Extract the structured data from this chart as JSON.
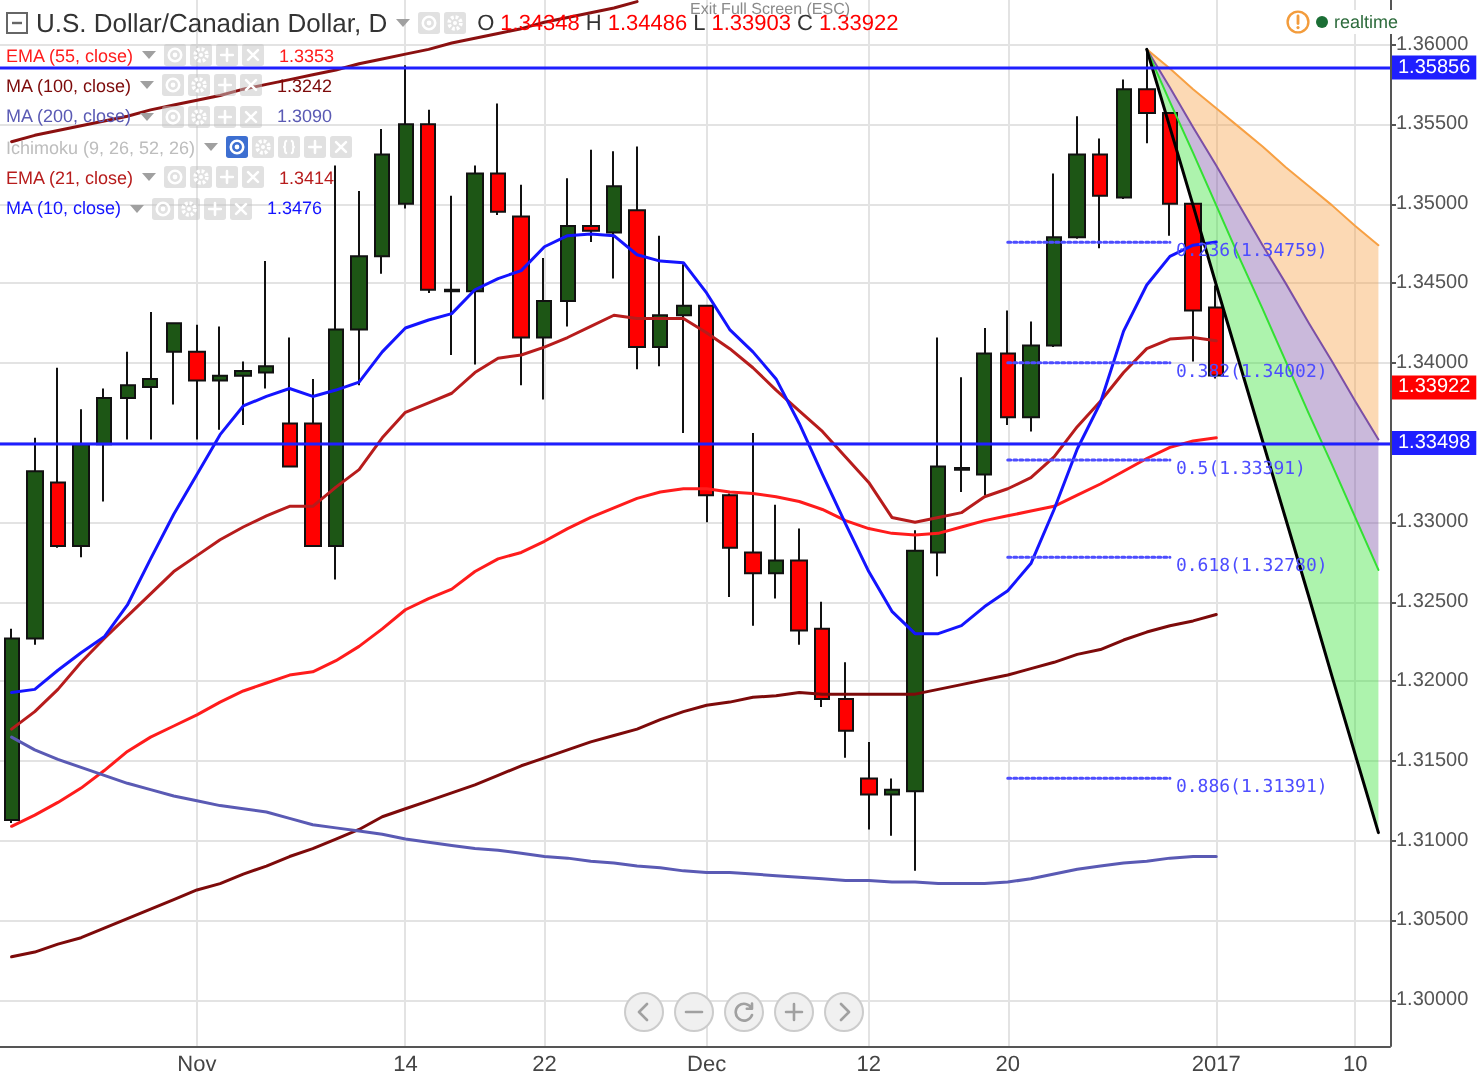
{
  "chart_data": {
    "type": "candlestick",
    "title": "U.S. Dollar/Canadian Dollar, D",
    "categories": [
      null,
      null,
      null,
      null,
      null,
      null,
      null,
      null,
      "Nov",
      null,
      null,
      null,
      null,
      null,
      null,
      null,
      null,
      "14",
      null,
      null,
      null,
      null,
      null,
      "22",
      null,
      null,
      null,
      null,
      null,
      null,
      "Dec",
      null,
      null,
      null,
      null,
      null,
      null,
      "12",
      null,
      null,
      null,
      null,
      null,
      "20",
      null,
      null,
      null,
      null,
      null,
      null,
      null,
      null,
      "2017",
      null,
      null,
      null,
      null,
      null,
      "10",
      null
    ],
    "ohlc": [
      [
        1.3113,
        1.3233,
        1.3111,
        1.3227
      ],
      [
        1.3227,
        1.3353,
        1.3223,
        1.3332
      ],
      [
        1.3325,
        1.3397,
        1.3284,
        1.3285
      ],
      [
        1.3285,
        1.3371,
        1.3278,
        1.3349
      ],
      [
        1.3349,
        1.3384,
        1.3313,
        1.3378
      ],
      [
        1.3378,
        1.3407,
        1.3352,
        1.3386
      ],
      [
        1.3385,
        1.3432,
        1.3352,
        1.339
      ],
      [
        1.3407,
        1.3425,
        1.3374,
        1.3425
      ],
      [
        1.3407,
        1.3424,
        1.3352,
        1.3389
      ],
      [
        1.3389,
        1.3423,
        1.3358,
        1.3392
      ],
      [
        1.3392,
        1.3401,
        1.3361,
        1.3395
      ],
      [
        1.3394,
        1.3464,
        1.3384,
        1.3398
      ],
      [
        1.3362,
        1.3416,
        1.3335,
        1.3335
      ],
      [
        1.3362,
        1.339,
        1.3285,
        1.3285
      ],
      [
        1.3285,
        1.3524,
        1.3264,
        1.3421
      ],
      [
        1.3421,
        1.3508,
        1.3386,
        1.3467
      ],
      [
        1.3467,
        1.3547,
        1.3456,
        1.3531
      ],
      [
        1.35,
        1.3587,
        1.3497,
        1.355
      ],
      [
        1.355,
        1.3559,
        1.3444,
        1.3446
      ],
      [
        1.3446,
        1.3505,
        1.3405,
        1.3445
      ],
      [
        1.3445,
        1.3524,
        1.3399,
        1.3519
      ],
      [
        1.3519,
        1.3563,
        1.3493,
        1.3495
      ],
      [
        1.3492,
        1.3512,
        1.3386,
        1.3416
      ],
      [
        1.3416,
        1.3466,
        1.3377,
        1.3439
      ],
      [
        1.3439,
        1.3516,
        1.3423,
        1.3486
      ],
      [
        1.3486,
        1.3534,
        1.3476,
        1.3483
      ],
      [
        1.3482,
        1.3533,
        1.3453,
        1.3511
      ],
      [
        1.3496,
        1.3536,
        1.3396,
        1.341
      ],
      [
        1.341,
        1.348,
        1.3398,
        1.343
      ],
      [
        1.343,
        1.3462,
        1.3356,
        1.3436
      ],
      [
        1.3436,
        1.3436,
        1.33,
        1.3317
      ],
      [
        1.3317,
        1.3318,
        1.3253,
        1.3284
      ],
      [
        1.3281,
        1.3356,
        1.3235,
        1.3268
      ],
      [
        1.3268,
        1.3311,
        1.3252,
        1.3276
      ],
      [
        1.3276,
        1.3296,
        1.3223,
        1.3232
      ],
      [
        1.3233,
        1.325,
        1.3184,
        1.3189
      ],
      [
        1.3189,
        1.3212,
        1.3152,
        1.3169
      ],
      [
        1.3139,
        1.3162,
        1.3107,
        1.3129
      ],
      [
        1.3129,
        1.3139,
        1.3103,
        1.3132
      ],
      [
        1.3131,
        1.3295,
        1.3081,
        1.3282
      ],
      [
        1.3281,
        1.3416,
        1.3266,
        1.3335
      ],
      [
        1.3334,
        1.3391,
        1.3319,
        1.3333
      ],
      [
        1.333,
        1.3422,
        1.3317,
        1.3406
      ],
      [
        1.3406,
        1.3433,
        1.3361,
        1.3366
      ],
      [
        1.3366,
        1.3426,
        1.3357,
        1.3411
      ],
      [
        1.3411,
        1.3519,
        1.341,
        1.3479
      ],
      [
        1.3479,
        1.3555,
        1.3478,
        1.3531
      ],
      [
        1.3531,
        1.3541,
        1.3472,
        1.3505
      ],
      [
        1.3504,
        1.3578,
        1.3503,
        1.3572
      ],
      [
        1.3572,
        1.3597,
        1.3538,
        1.3557
      ],
      [
        1.3557,
        1.3557,
        1.348,
        1.35
      ],
      [
        1.35,
        1.35,
        1.3401,
        1.3433
      ],
      [
        1.34348,
        1.34486,
        1.33903,
        1.33922
      ],
      null,
      null,
      null,
      null,
      null,
      null,
      null
    ],
    "colors": [
      "#1d5615",
      "#1d5615",
      "#ff0000",
      "#1d5615",
      "#1d5615",
      "#1d5615",
      "#1d5615",
      "#1d5615",
      "#ff0000",
      "#1d5615",
      "#1d5615",
      "#1d5615",
      "#ff0000",
      "#ff0000",
      "#1d5615",
      "#1d5615",
      "#1d5615",
      "#1d5615",
      "#ff0000",
      "#ff0000",
      "#1d5615",
      "#ff0000",
      "#ff0000",
      "#1d5615",
      "#1d5615",
      "#ff0000",
      "#1d5615",
      "#ff0000",
      "#1d5615",
      "#1d5615",
      "#ff0000",
      "#ff0000",
      "#ff0000",
      "#1d5615",
      "#ff0000",
      "#ff0000",
      "#ff0000",
      "#ff0000",
      "#1d5615",
      "#1d5615",
      "#1d5615",
      "#ff0000",
      "#1d5615",
      "#ff0000",
      "#1d5615",
      "#1d5615",
      "#1d5615",
      "#ff0000",
      "#1d5615",
      "#ff0000",
      "#ff0000",
      "#ff0000",
      "#ff0000",
      null,
      null,
      null,
      null,
      null,
      null,
      null
    ],
    "series": [
      {
        "name": "EMA (55, close)",
        "type": "line",
        "color": "#ff1c1c",
        "values": [
          1.3109,
          1.3116,
          1.3124,
          1.3133,
          1.3144,
          1.3156,
          1.3165,
          1.3172,
          1.3179,
          1.3187,
          1.3194,
          1.3199,
          1.3204,
          1.3206,
          1.3213,
          1.3222,
          1.3233,
          1.3245,
          1.3252,
          1.3258,
          1.3269,
          1.3277,
          1.3281,
          1.3288,
          1.3296,
          1.3303,
          1.3309,
          1.3315,
          1.3319,
          1.3321,
          1.3321,
          1.3319,
          1.3318,
          1.3316,
          1.3313,
          1.3308,
          1.3301,
          1.3296,
          1.3293,
          1.3292,
          1.3293,
          1.3297,
          1.3301,
          1.3304,
          1.3307,
          1.331,
          1.3317,
          1.3324,
          1.3332,
          1.334,
          1.3347,
          1.3351,
          1.3353,
          null,
          null,
          null,
          null,
          null,
          null,
          null
        ]
      },
      {
        "name": "MA (100, close)",
        "type": "line",
        "color": "#7d0a0a",
        "values": [
          1.3027,
          1.303,
          1.3035,
          1.3039,
          1.3045,
          1.3051,
          1.3057,
          1.3063,
          1.3069,
          1.3073,
          1.3079,
          1.3084,
          1.309,
          1.3095,
          1.3101,
          1.3107,
          1.3115,
          1.312,
          1.3125,
          1.313,
          1.3135,
          1.3141,
          1.3147,
          1.3152,
          1.3157,
          1.3162,
          1.3166,
          1.317,
          1.3176,
          1.3181,
          1.3185,
          1.3187,
          1.319,
          1.3191,
          1.3193,
          1.3192,
          1.3192,
          1.3192,
          1.3192,
          1.3192,
          1.3195,
          1.3198,
          1.3201,
          1.3204,
          1.3208,
          1.3212,
          1.3217,
          1.322,
          1.3226,
          1.3231,
          1.3235,
          1.3238,
          1.3242,
          null,
          null,
          null,
          null,
          null,
          null,
          null
        ]
      },
      {
        "name": "MA (200, close)",
        "type": "line",
        "color": "#5a5ab4",
        "values": [
          1.3165,
          1.3157,
          1.3151,
          1.3146,
          1.3141,
          1.3136,
          1.3132,
          1.3128,
          1.3125,
          1.3122,
          1.312,
          1.3118,
          1.3114,
          1.311,
          1.3108,
          1.3106,
          1.3104,
          1.3101,
          1.3099,
          1.3097,
          1.3095,
          1.3094,
          1.3092,
          1.309,
          1.3089,
          1.3087,
          1.3086,
          1.3084,
          1.3083,
          1.3081,
          1.308,
          1.308,
          1.3079,
          1.3078,
          1.3077,
          1.3076,
          1.3075,
          1.3075,
          1.3074,
          1.3074,
          1.3073,
          1.3073,
          1.3073,
          1.3074,
          1.3076,
          1.3079,
          1.3082,
          1.3084,
          1.3086,
          1.3087,
          1.3089,
          1.309,
          1.309,
          null,
          null,
          null,
          null,
          null,
          null,
          null
        ]
      },
      {
        "name": "Ichimoku (9, 26, 52, 26)",
        "type": "line",
        "values": [
          null,
          null,
          null,
          null,
          null,
          null,
          null,
          null,
          null,
          null,
          null,
          null,
          null,
          null,
          null,
          null,
          null,
          null,
          null,
          null,
          null,
          null,
          null,
          null,
          null,
          null,
          null,
          null,
          null,
          null,
          null,
          null,
          null,
          null,
          null,
          null,
          null,
          null,
          null,
          null,
          null,
          null,
          null,
          null,
          null,
          null,
          null,
          null,
          null,
          null,
          null,
          null,
          null,
          null,
          null,
          null,
          null,
          null,
          null,
          null
        ]
      },
      {
        "name": "EMA (21, close)",
        "type": "line",
        "color": "#b71c1c",
        "values": [
          1.317,
          1.3181,
          1.3195,
          1.3212,
          1.3227,
          1.3241,
          1.3255,
          1.3269,
          1.3279,
          1.3289,
          1.3297,
          1.3304,
          1.331,
          1.331,
          1.3322,
          1.3333,
          1.3353,
          1.3369,
          1.3375,
          1.3381,
          1.3394,
          1.3403,
          1.3405,
          1.341,
          1.3416,
          1.3423,
          1.343,
          1.3428,
          1.3428,
          1.3428,
          1.3419,
          1.3409,
          1.3397,
          1.3383,
          1.337,
          1.3357,
          1.3341,
          1.3325,
          1.3303,
          1.33,
          1.3303,
          1.3306,
          1.3316,
          1.3321,
          1.3328,
          1.3341,
          1.336,
          1.3376,
          1.3394,
          1.3409,
          1.3415,
          1.3416,
          1.3414,
          null,
          null,
          null,
          null,
          null,
          null,
          null
        ]
      },
      {
        "name": "MA (10, close)",
        "type": "line",
        "color": "#1414ff",
        "values": [
          1.3193,
          1.3195,
          1.3207,
          1.3218,
          1.3228,
          1.3248,
          1.3277,
          1.3305,
          1.333,
          1.3355,
          1.3373,
          1.3379,
          1.3384,
          1.3379,
          1.3383,
          1.3388,
          1.3407,
          1.3422,
          1.3427,
          1.3431,
          1.3446,
          1.3453,
          1.3458,
          1.3473,
          1.348,
          1.3481,
          1.348,
          1.3468,
          1.3464,
          1.3463,
          1.3444,
          1.3421,
          1.3407,
          1.339,
          1.3362,
          1.333,
          1.3299,
          1.3269,
          1.3244,
          1.323,
          1.323,
          1.3235,
          1.3247,
          1.3257,
          1.3274,
          1.3308,
          1.3346,
          1.3375,
          1.342,
          1.3449,
          1.3467,
          1.3474,
          1.3476,
          null,
          null,
          null,
          null,
          null,
          null,
          null
        ]
      },
      {
        "type": "line",
        "color": "#8b1010",
        "values": [
          1.3539,
          1.3543,
          1.3546,
          1.3549,
          1.3552,
          1.3555,
          1.3559,
          1.3562,
          1.3565,
          1.3568,
          1.3572,
          1.3575,
          1.3578,
          1.3581,
          1.3584,
          1.3588,
          1.3591,
          1.3594,
          1.3597,
          1.3601,
          1.3604,
          1.3607,
          1.361,
          1.3614,
          1.3617,
          1.362,
          1.3623,
          1.3627,
          null,
          null,
          null,
          null,
          null,
          null,
          null,
          null,
          null,
          null,
          null,
          null,
          null,
          null,
          null,
          null,
          null,
          null,
          null,
          null,
          null,
          null,
          null,
          null,
          null,
          null,
          null,
          null,
          null,
          null,
          null,
          null
        ]
      },
      {
        "type": "line",
        "color": "#f7a043",
        "values": [
          null,
          null,
          null,
          null,
          null,
          null,
          null,
          null,
          null,
          null,
          null,
          null,
          null,
          null,
          null,
          null,
          null,
          null,
          null,
          null,
          null,
          null,
          null,
          null,
          null,
          null,
          null,
          null,
          null,
          null,
          null,
          null,
          null,
          null,
          null,
          null,
          null,
          null,
          null,
          null,
          null,
          null,
          null,
          null,
          null,
          null,
          null,
          null,
          null,
          1.3597,
          1.3585,
          1.3572,
          1.356,
          1.3548,
          1.3536,
          1.3523,
          1.3511,
          1.3499,
          1.3486,
          1.3474
        ],
        "upper": [
          null,
          null,
          null,
          null,
          null,
          null,
          null,
          null,
          null,
          null,
          null,
          null,
          null,
          null,
          null,
          null,
          null,
          null,
          null,
          null,
          null,
          null,
          null,
          null,
          null,
          null,
          null,
          null,
          null,
          null,
          null,
          null,
          null,
          null,
          null,
          null,
          null,
          null,
          null,
          null,
          null,
          null,
          null,
          null,
          null,
          null,
          null,
          null,
          null,
          1.3597,
          1.3585,
          1.3572,
          1.356,
          1.3548,
          1.3536,
          1.3523,
          1.3511,
          1.3499,
          1.3486,
          1.3474
        ],
        "lower": [
          null,
          null,
          null,
          null,
          null,
          null,
          null,
          null,
          null,
          null,
          null,
          null,
          null,
          null,
          null,
          null,
          null,
          null,
          null,
          null,
          null,
          null,
          null,
          null,
          null,
          null,
          null,
          null,
          null,
          null,
          null,
          null,
          null,
          null,
          null,
          null,
          null,
          null,
          null,
          null,
          null,
          null,
          null,
          null,
          null,
          null,
          null,
          null,
          null,
          1.3597,
          1.3573,
          1.3548,
          1.3524,
          1.3499,
          1.3474,
          1.345,
          1.3425,
          1.3401,
          1.3376,
          1.3352
        ]
      },
      {
        "type": "line",
        "color": "#7b4fa6",
        "values": [
          null,
          null,
          null,
          null,
          null,
          null,
          null,
          null,
          null,
          null,
          null,
          null,
          null,
          null,
          null,
          null,
          null,
          null,
          null,
          null,
          null,
          null,
          null,
          null,
          null,
          null,
          null,
          null,
          null,
          null,
          null,
          null,
          null,
          null,
          null,
          null,
          null,
          null,
          null,
          null,
          null,
          null,
          null,
          null,
          null,
          null,
          null,
          null,
          null,
          1.3597,
          1.3573,
          1.3548,
          1.3524,
          1.3499,
          1.3474,
          1.345,
          1.3425,
          1.3401,
          1.3376,
          1.3352
        ],
        "upper": [
          null,
          null,
          null,
          null,
          null,
          null,
          null,
          null,
          null,
          null,
          null,
          null,
          null,
          null,
          null,
          null,
          null,
          null,
          null,
          null,
          null,
          null,
          null,
          null,
          null,
          null,
          null,
          null,
          null,
          null,
          null,
          null,
          null,
          null,
          null,
          null,
          null,
          null,
          null,
          null,
          null,
          null,
          null,
          null,
          null,
          null,
          null,
          null,
          null,
          1.3597,
          1.3573,
          1.3548,
          1.3524,
          1.3499,
          1.3474,
          1.345,
          1.3425,
          1.3401,
          1.3376,
          1.3352
        ],
        "lower": [
          null,
          null,
          null,
          null,
          null,
          null,
          null,
          null,
          null,
          null,
          null,
          null,
          null,
          null,
          null,
          null,
          null,
          null,
          null,
          null,
          null,
          null,
          null,
          null,
          null,
          null,
          null,
          null,
          null,
          null,
          null,
          null,
          null,
          null,
          null,
          null,
          null,
          null,
          null,
          null,
          null,
          null,
          null,
          null,
          null,
          null,
          null,
          null,
          null,
          1.3597,
          1.3564,
          1.3532,
          1.3499,
          1.3466,
          1.3434,
          1.3401,
          1.3368,
          1.3336,
          1.3303,
          1.327
        ]
      },
      {
        "type": "line",
        "color": "#33e033",
        "values": [
          null,
          null,
          null,
          null,
          null,
          null,
          null,
          null,
          null,
          null,
          null,
          null,
          null,
          null,
          null,
          null,
          null,
          null,
          null,
          null,
          null,
          null,
          null,
          null,
          null,
          null,
          null,
          null,
          null,
          null,
          null,
          null,
          null,
          null,
          null,
          null,
          null,
          null,
          null,
          null,
          null,
          null,
          null,
          null,
          null,
          null,
          null,
          null,
          null,
          1.3597,
          1.3564,
          1.3532,
          1.3499,
          1.3466,
          1.3434,
          1.3401,
          1.3368,
          1.3336,
          1.3303,
          1.327
        ],
        "upper": [
          null,
          null,
          null,
          null,
          null,
          null,
          null,
          null,
          null,
          null,
          null,
          null,
          null,
          null,
          null,
          null,
          null,
          null,
          null,
          null,
          null,
          null,
          null,
          null,
          null,
          null,
          null,
          null,
          null,
          null,
          null,
          null,
          null,
          null,
          null,
          null,
          null,
          null,
          null,
          null,
          null,
          null,
          null,
          null,
          null,
          null,
          null,
          null,
          null,
          1.3597,
          1.3564,
          1.3532,
          1.3499,
          1.3466,
          1.3434,
          1.3401,
          1.3368,
          1.3336,
          1.3303,
          1.327
        ],
        "lower": [
          null,
          null,
          null,
          null,
          null,
          null,
          null,
          null,
          null,
          null,
          null,
          null,
          null,
          null,
          null,
          null,
          null,
          null,
          null,
          null,
          null,
          null,
          null,
          null,
          null,
          null,
          null,
          null,
          null,
          null,
          null,
          null,
          null,
          null,
          null,
          null,
          null,
          null,
          null,
          null,
          null,
          null,
          null,
          null,
          null,
          null,
          null,
          null,
          null,
          1.3597,
          1.3548,
          1.3499,
          1.3449,
          1.34,
          1.3351,
          1.3302,
          1.3253,
          1.3203,
          1.3154,
          1.3105
        ]
      },
      {
        "type": "line",
        "color": "#000000",
        "values": [
          null,
          null,
          null,
          null,
          null,
          null,
          null,
          null,
          null,
          null,
          null,
          null,
          null,
          null,
          null,
          null,
          null,
          null,
          null,
          null,
          null,
          null,
          null,
          null,
          null,
          null,
          null,
          null,
          null,
          null,
          null,
          null,
          null,
          null,
          null,
          null,
          null,
          null,
          null,
          null,
          null,
          null,
          null,
          null,
          null,
          null,
          null,
          null,
          null,
          1.3597,
          1.3548,
          1.3499,
          1.3449,
          1.34,
          1.3351,
          1.3302,
          1.3253,
          1.3203,
          1.3154,
          1.3105
        ]
      },
      {
        "type": "line",
        "line_style": "dotted",
        "color": "#4d4dff",
        "values": [
          null,
          null,
          null,
          null,
          null,
          null,
          null,
          null,
          null,
          null,
          null,
          null,
          null,
          null,
          null,
          null,
          null,
          null,
          null,
          null,
          null,
          null,
          null,
          null,
          null,
          null,
          null,
          null,
          null,
          null,
          null,
          null,
          null,
          null,
          null,
          null,
          null,
          null,
          null,
          null,
          null,
          null,
          null,
          1.34759,
          1.34759,
          1.34759,
          1.34759,
          1.34759,
          1.34759,
          1.34759,
          1.34759,
          null,
          null,
          null,
          null,
          null,
          null,
          null,
          null,
          null
        ],
        "value_labels": [
          null,
          null,
          null,
          null,
          null,
          null,
          null,
          null,
          null,
          null,
          null,
          null,
          null,
          null,
          null,
          null,
          null,
          null,
          null,
          null,
          null,
          null,
          null,
          null,
          null,
          null,
          null,
          null,
          null,
          null,
          null,
          null,
          null,
          null,
          null,
          null,
          null,
          null,
          null,
          null,
          null,
          null,
          null,
          null,
          null,
          null,
          null,
          null,
          null,
          null,
          "0.236(1.34759)",
          null,
          null,
          null,
          null,
          null,
          null,
          null,
          null,
          null
        ]
      },
      {
        "type": "line",
        "line_style": "dotted",
        "color": "#4d4dff",
        "values": [
          null,
          null,
          null,
          null,
          null,
          null,
          null,
          null,
          null,
          null,
          null,
          null,
          null,
          null,
          null,
          null,
          null,
          null,
          null,
          null,
          null,
          null,
          null,
          null,
          null,
          null,
          null,
          null,
          null,
          null,
          null,
          null,
          null,
          null,
          null,
          null,
          null,
          null,
          null,
          null,
          null,
          null,
          null,
          1.34002,
          1.34002,
          1.34002,
          1.34002,
          1.34002,
          1.34002,
          1.34002,
          1.34002,
          null,
          null,
          null,
          null,
          null,
          null,
          null,
          null,
          null
        ],
        "value_labels": [
          null,
          null,
          null,
          null,
          null,
          null,
          null,
          null,
          null,
          null,
          null,
          null,
          null,
          null,
          null,
          null,
          null,
          null,
          null,
          null,
          null,
          null,
          null,
          null,
          null,
          null,
          null,
          null,
          null,
          null,
          null,
          null,
          null,
          null,
          null,
          null,
          null,
          null,
          null,
          null,
          null,
          null,
          null,
          null,
          null,
          null,
          null,
          null,
          null,
          null,
          "0.382(1.34002)",
          null,
          null,
          null,
          null,
          null,
          null,
          null,
          null,
          null
        ]
      },
      {
        "type": "line",
        "line_style": "dotted",
        "color": "#4d4dff",
        "values": [
          null,
          null,
          null,
          null,
          null,
          null,
          null,
          null,
          null,
          null,
          null,
          null,
          null,
          null,
          null,
          null,
          null,
          null,
          null,
          null,
          null,
          null,
          null,
          null,
          null,
          null,
          null,
          null,
          null,
          null,
          null,
          null,
          null,
          null,
          null,
          null,
          null,
          null,
          null,
          null,
          null,
          null,
          null,
          1.33391,
          1.33391,
          1.33391,
          1.33391,
          1.33391,
          1.33391,
          1.33391,
          1.33391,
          null,
          null,
          null,
          null,
          null,
          null,
          null,
          null,
          null
        ],
        "value_labels": [
          null,
          null,
          null,
          null,
          null,
          null,
          null,
          null,
          null,
          null,
          null,
          null,
          null,
          null,
          null,
          null,
          null,
          null,
          null,
          null,
          null,
          null,
          null,
          null,
          null,
          null,
          null,
          null,
          null,
          null,
          null,
          null,
          null,
          null,
          null,
          null,
          null,
          null,
          null,
          null,
          null,
          null,
          null,
          null,
          null,
          null,
          null,
          null,
          null,
          null,
          "0.5(1.33391)",
          null,
          null,
          null,
          null,
          null,
          null,
          null,
          null,
          null
        ]
      },
      {
        "type": "line",
        "line_style": "dotted",
        "color": "#4d4dff",
        "values": [
          null,
          null,
          null,
          null,
          null,
          null,
          null,
          null,
          null,
          null,
          null,
          null,
          null,
          null,
          null,
          null,
          null,
          null,
          null,
          null,
          null,
          null,
          null,
          null,
          null,
          null,
          null,
          null,
          null,
          null,
          null,
          null,
          null,
          null,
          null,
          null,
          null,
          null,
          null,
          null,
          null,
          null,
          null,
          1.3278,
          1.3278,
          1.3278,
          1.3278,
          1.3278,
          1.3278,
          1.3278,
          1.3278,
          null,
          null,
          null,
          null,
          null,
          null,
          null,
          null,
          null
        ],
        "value_labels": [
          null,
          null,
          null,
          null,
          null,
          null,
          null,
          null,
          null,
          null,
          null,
          null,
          null,
          null,
          null,
          null,
          null,
          null,
          null,
          null,
          null,
          null,
          null,
          null,
          null,
          null,
          null,
          null,
          null,
          null,
          null,
          null,
          null,
          null,
          null,
          null,
          null,
          null,
          null,
          null,
          null,
          null,
          null,
          null,
          null,
          null,
          null,
          null,
          null,
          null,
          "0.618(1.32780)",
          null,
          null,
          null,
          null,
          null,
          null,
          null,
          null,
          null
        ]
      },
      {
        "type": "line",
        "line_style": "dotted",
        "color": "#4d4dff",
        "values": [
          null,
          null,
          null,
          null,
          null,
          null,
          null,
          null,
          null,
          null,
          null,
          null,
          null,
          null,
          null,
          null,
          null,
          null,
          null,
          null,
          null,
          null,
          null,
          null,
          null,
          null,
          null,
          null,
          null,
          null,
          null,
          null,
          null,
          null,
          null,
          null,
          null,
          null,
          null,
          null,
          null,
          null,
          null,
          1.31391,
          1.31391,
          1.31391,
          1.31391,
          1.31391,
          1.31391,
          1.31391,
          1.31391,
          null,
          null,
          null,
          null,
          null,
          null,
          null,
          null,
          null
        ],
        "value_labels": [
          null,
          null,
          null,
          null,
          null,
          null,
          null,
          null,
          null,
          null,
          null,
          null,
          null,
          null,
          null,
          null,
          null,
          null,
          null,
          null,
          null,
          null,
          null,
          null,
          null,
          null,
          null,
          null,
          null,
          null,
          null,
          null,
          null,
          null,
          null,
          null,
          null,
          null,
          null,
          null,
          null,
          null,
          null,
          null,
          null,
          null,
          null,
          null,
          null,
          null,
          "0.886(1.31391)",
          null,
          null,
          null,
          null,
          null,
          null,
          null,
          null,
          null
        ]
      }
    ],
    "ylim": [
      1.2971,
      1.3628
    ],
    "yticks": [
      {
        "value": 1.3,
        "label": "1.30000"
      },
      {
        "value": 1.305,
        "label": "1.30500"
      },
      {
        "value": 1.31,
        "label": "1.31000"
      },
      {
        "value": 1.315,
        "label": "1.31500"
      },
      {
        "value": 1.32,
        "label": "1.32000"
      },
      {
        "value": 1.325,
        "label": "1.32500"
      },
      {
        "value": 1.33,
        "label": "1.33000"
      },
      {
        "value": 1.335,
        "label": null
      },
      {
        "value": 1.34,
        "label": "1.34000"
      },
      {
        "value": 1.345,
        "label": "1.34500"
      },
      {
        "value": 1.35,
        "label": "1.35000"
      },
      {
        "value": 1.355,
        "label": "1.35500"
      },
      {
        "value": 1.36,
        "label": "1.36000"
      }
    ],
    "ref_lines": [
      {
        "axis": "y",
        "value": 1.35856,
        "label": "1.35856",
        "color": "#1f1fff"
      },
      {
        "axis": "y",
        "value": 1.33498,
        "label": "1.33498",
        "color": "#1f1fff"
      }
    ],
    "annotations": [
      "O 1.34348 H 1.34486 L 1.33903 C 1.33922",
      "Exit Full Screen (ESC)",
      "realtime",
      "1.33922",
      "1.3353",
      "1.3242",
      "1.3090",
      "1.3414",
      "1.3476"
    ],
    "grid": true,
    "legend": "top left",
    "marker": "none"
  }
}
